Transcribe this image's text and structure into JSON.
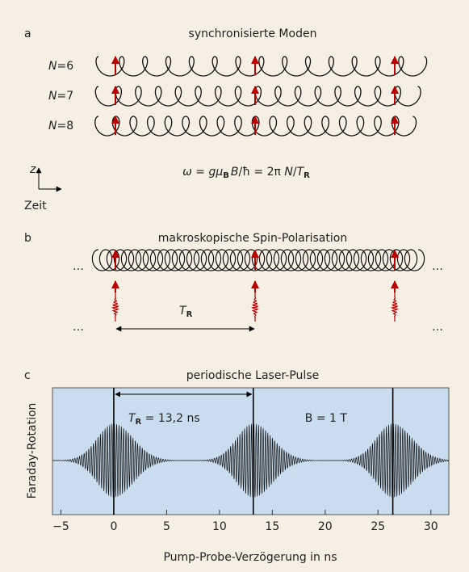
{
  "panel_a": {
    "label": "a",
    "title": "synchronisierte Moden",
    "modes": [
      {
        "symbol": "N",
        "text": "=6"
      },
      {
        "symbol": "N",
        "text": "=7"
      },
      {
        "symbol": "N",
        "text": "=8"
      }
    ],
    "formula": {
      "part1": "ω = g",
      "mu": "μ",
      "mu_sub": "B",
      "part2": "B",
      "part3": "/ħ = 2π",
      "n": " N",
      "slash": "/",
      "t": "T",
      "t_sub": "R"
    },
    "axis_z": "z",
    "axis_time": "Zeit"
  },
  "panel_b": {
    "label": "b",
    "title": "makroskopische Spin-Polarisation",
    "ellipses": [
      "…",
      "…",
      "…",
      "…"
    ],
    "period": {
      "symbol": "T",
      "sub": "R"
    }
  },
  "chart_data": {
    "type": "line",
    "label": "c",
    "title": "periodische Laser-Pulse",
    "xlabel": "Pump-Probe-Verzögerung in ns",
    "ylabel": "Faraday-Rotation",
    "xlim": [
      -5.8,
      31.7
    ],
    "xticks": [
      {
        "value": -5,
        "label": "−5"
      },
      0,
      5,
      10,
      15,
      20,
      25,
      30
    ],
    "pulses": [
      0,
      13.2,
      26.4
    ],
    "annotations": {
      "period_symbol": "T",
      "period_sub": "R",
      "period_text": " = 13,2 ns",
      "field_text": "B = 1 T"
    },
    "background": "#c9ddee"
  }
}
